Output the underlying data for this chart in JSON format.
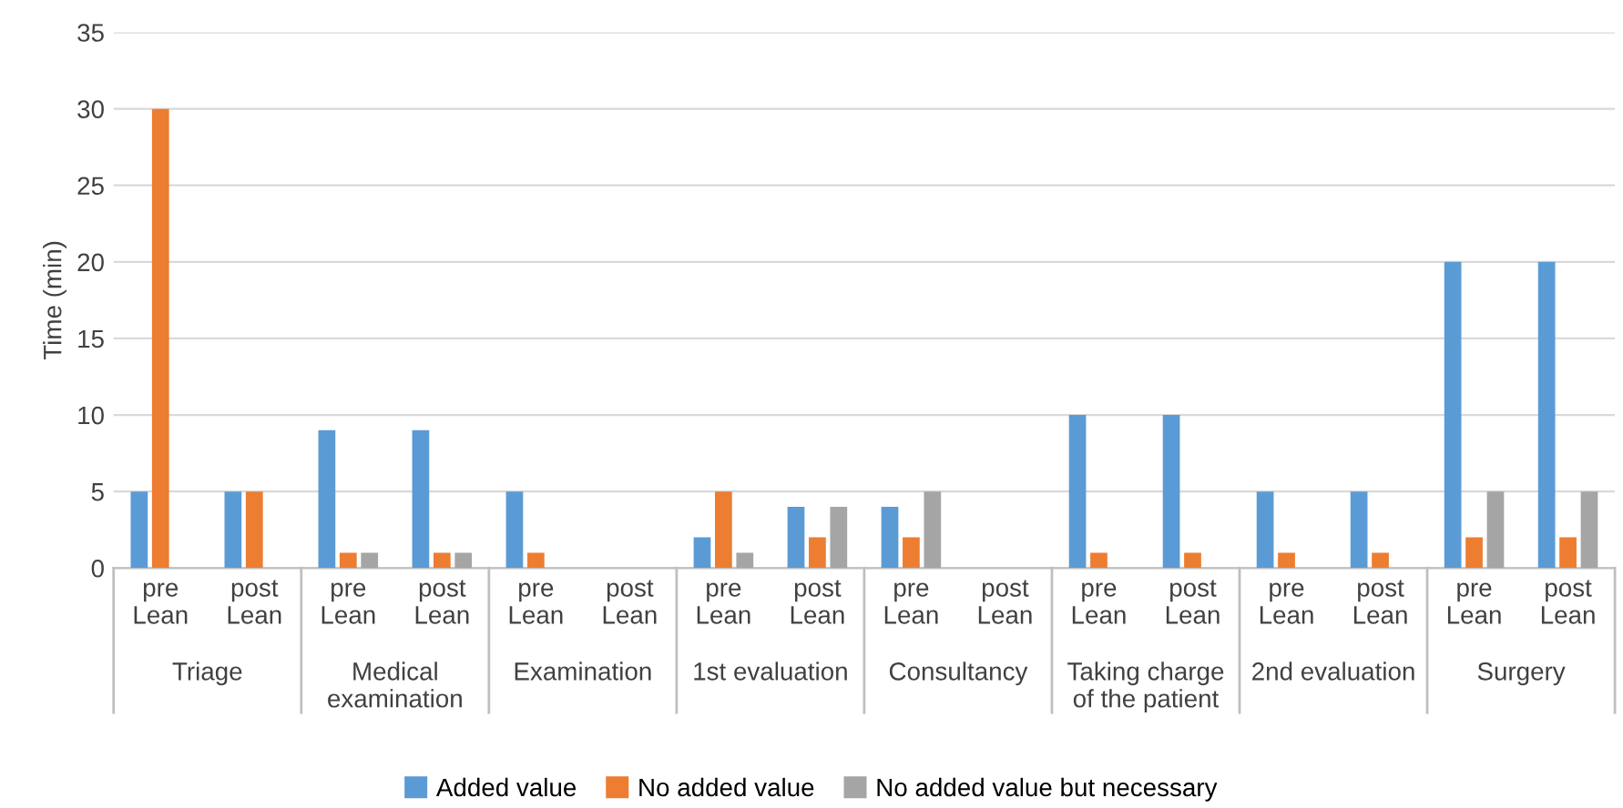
{
  "chart_data": {
    "type": "bar",
    "ylabel": "Time (min)",
    "categories": [
      "pre\nLean",
      "post\nLean",
      "pre\nLean",
      "post\nLean",
      "pre\nLean",
      "post\nLean",
      "pre\nLean",
      "post\nLean",
      "pre\nLean",
      "post\nLean",
      "pre\nLean",
      "post\nLean",
      "pre\nLean",
      "post\nLean",
      "pre\nLean",
      "post\nLean"
    ],
    "annotations": [
      "Triage",
      "Medical\nexamination",
      "Examination",
      "1st evaluation",
      "Consultancy",
      "Taking charge\nof the patient",
      "2nd evaluation",
      "Surgery"
    ],
    "series": [
      {
        "name": "Added value",
        "color": "#5b9bd5",
        "values": [
          5,
          5,
          9,
          9,
          5,
          0,
          2,
          4,
          4,
          0,
          10,
          10,
          5,
          5,
          20,
          20
        ]
      },
      {
        "name": "No added value",
        "color": "#ed7d31",
        "values": [
          30,
          5,
          1,
          1,
          1,
          0,
          5,
          2,
          2,
          0,
          1,
          1,
          1,
          1,
          2,
          2
        ]
      },
      {
        "name": "No added value but necessary",
        "color": "#a5a5a5",
        "values": [
          0,
          0,
          1,
          1,
          0,
          0,
          1,
          4,
          5,
          0,
          0,
          0,
          0,
          0,
          5,
          5
        ]
      }
    ],
    "ylim": [
      0,
      35
    ],
    "yticks": [
      0,
      5,
      10,
      15,
      20,
      25,
      30,
      35
    ],
    "grid": "y",
    "legend": "bottom"
  }
}
